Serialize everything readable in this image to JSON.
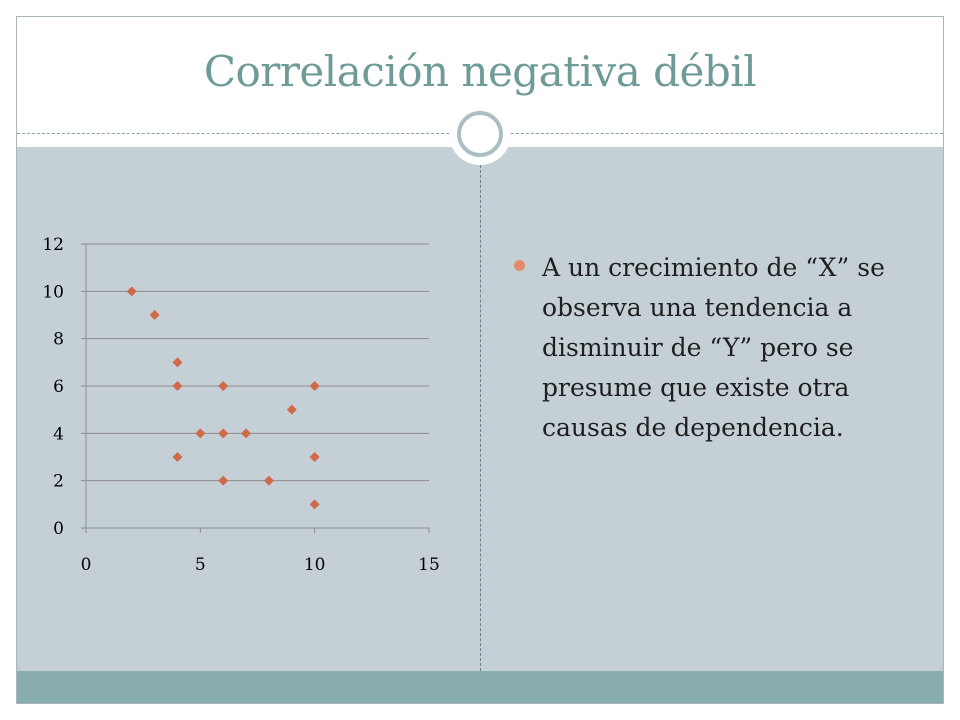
{
  "slide": {
    "title": "Correlación negativa débil",
    "bullets": [
      "A un crecimiento de “X” se observa una tendencia a disminuir de “Y” pero se presume que existe otra causas de dependencia."
    ]
  },
  "colors": {
    "title": "#6e9a97",
    "content_background": "#c5d0d6",
    "footer_band": "#8aaeae",
    "marker": "#d06a4a",
    "gridline": "#8c8c8c",
    "bullet": "#e28c6d"
  },
  "chart_data": {
    "type": "scatter",
    "marker": "diamond",
    "xlim": [
      0,
      15
    ],
    "ylim": [
      0,
      12
    ],
    "x_ticks": [
      0,
      5,
      10,
      15
    ],
    "y_ticks": [
      0,
      2,
      4,
      6,
      8,
      10,
      12
    ],
    "grid": "horizontal",
    "legend": "none",
    "points": [
      {
        "x": 2,
        "y": 10
      },
      {
        "x": 3,
        "y": 9
      },
      {
        "x": 4,
        "y": 7
      },
      {
        "x": 4,
        "y": 6
      },
      {
        "x": 6,
        "y": 6
      },
      {
        "x": 10,
        "y": 6
      },
      {
        "x": 9,
        "y": 5
      },
      {
        "x": 5,
        "y": 4
      },
      {
        "x": 6,
        "y": 4
      },
      {
        "x": 7,
        "y": 4
      },
      {
        "x": 4,
        "y": 3
      },
      {
        "x": 10,
        "y": 3
      },
      {
        "x": 6,
        "y": 2
      },
      {
        "x": 8,
        "y": 2
      },
      {
        "x": 10,
        "y": 1
      }
    ]
  }
}
